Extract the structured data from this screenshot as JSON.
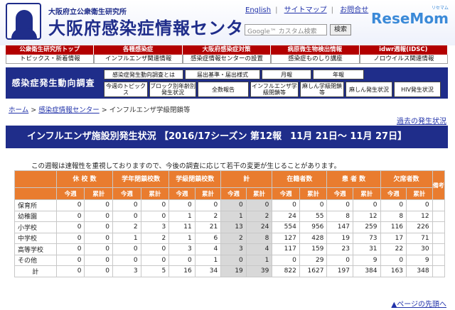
{
  "header": {
    "org_sub": "大阪府立公衆衛生研究所",
    "org_title": "大阪府感染症情報センター",
    "links": [
      "English",
      "サイトマップ",
      "お問合せ"
    ],
    "search_placeholder": "Google™ カスタム検索",
    "search_button": "検索",
    "brand": "ReseMom",
    "brand_sub": "リセマム"
  },
  "nav": {
    "row1": [
      "公衆衛生研究所トップ",
      "各種感染症",
      "大阪府感染症対策",
      "病原微生物検出情報",
      "idwr週報(IDSC)"
    ],
    "row2": [
      "トピックス・新着情報",
      "インフルエンザ関連情報",
      "感染症情報センターの設置",
      "感染症ものしり講座",
      "ノロウイルス関連情報"
    ]
  },
  "survey": {
    "title": "感染症発生動向調査",
    "buttons_row1": [
      "感染症発生動向調査とは",
      "届出基準・届出様式",
      "月報",
      "年報"
    ],
    "buttons_row2": [
      "今週のトピックス",
      "ブロック別年齢別発生状況",
      "全数報告",
      "インフルエンザ学級閉鎖等",
      "麻しん学級閉鎖等",
      "麻しん発生状況",
      "HIV発生状況"
    ]
  },
  "breadcrumb": {
    "home": "ホーム",
    "sep": " > ",
    "center": "感染症情報センター",
    "current": "インフルエンザ学級閉鎖等"
  },
  "past_link": "過去の発生状況",
  "banner": {
    "title": "インフルエンザ施設別発生状況 【2016/17シーズン 第12報",
    "term": "11月 21日～ 11月 27日】"
  },
  "notice": "この週報は速報性を重視しておりますので、今後の調査に応じて若干の変更が生じることがあります。",
  "table": {
    "headers": [
      "休 校 数",
      "学年閉鎖校数",
      "学級閉鎖校数",
      "計",
      "在籍者数",
      "患 者 数",
      "欠席者数",
      "備考"
    ],
    "sub_headers": [
      "今週",
      "累計"
    ],
    "rows": [
      {
        "label": "保育所",
        "values": [
          "0",
          "0",
          "0",
          "0",
          "0",
          "0",
          "0",
          "0",
          "0",
          "0",
          "0",
          "0",
          "0",
          "0"
        ]
      },
      {
        "label": "幼稚園",
        "values": [
          "0",
          "0",
          "0",
          "0",
          "1",
          "2",
          "1",
          "2",
          "24",
          "55",
          "8",
          "12",
          "8",
          "12"
        ]
      },
      {
        "label": "小学校",
        "values": [
          "0",
          "0",
          "2",
          "3",
          "11",
          "21",
          "13",
          "24",
          "554",
          "956",
          "147",
          "259",
          "116",
          "226"
        ]
      },
      {
        "label": "中学校",
        "values": [
          "0",
          "0",
          "1",
          "2",
          "1",
          "6",
          "2",
          "8",
          "127",
          "428",
          "19",
          "73",
          "17",
          "71"
        ]
      },
      {
        "label": "高等学校",
        "values": [
          "0",
          "0",
          "0",
          "0",
          "3",
          "4",
          "3",
          "4",
          "117",
          "159",
          "23",
          "31",
          "22",
          "30"
        ]
      },
      {
        "label": "その他",
        "values": [
          "0",
          "0",
          "0",
          "0",
          "0",
          "1",
          "0",
          "1",
          "0",
          "29",
          "0",
          "9",
          "0",
          "9"
        ]
      },
      {
        "label": "計",
        "values": [
          "0",
          "0",
          "3",
          "5",
          "16",
          "34",
          "19",
          "39",
          "822",
          "1627",
          "197",
          "384",
          "163",
          "348"
        ]
      }
    ]
  },
  "pagetop": "▲ページの先頭へ"
}
